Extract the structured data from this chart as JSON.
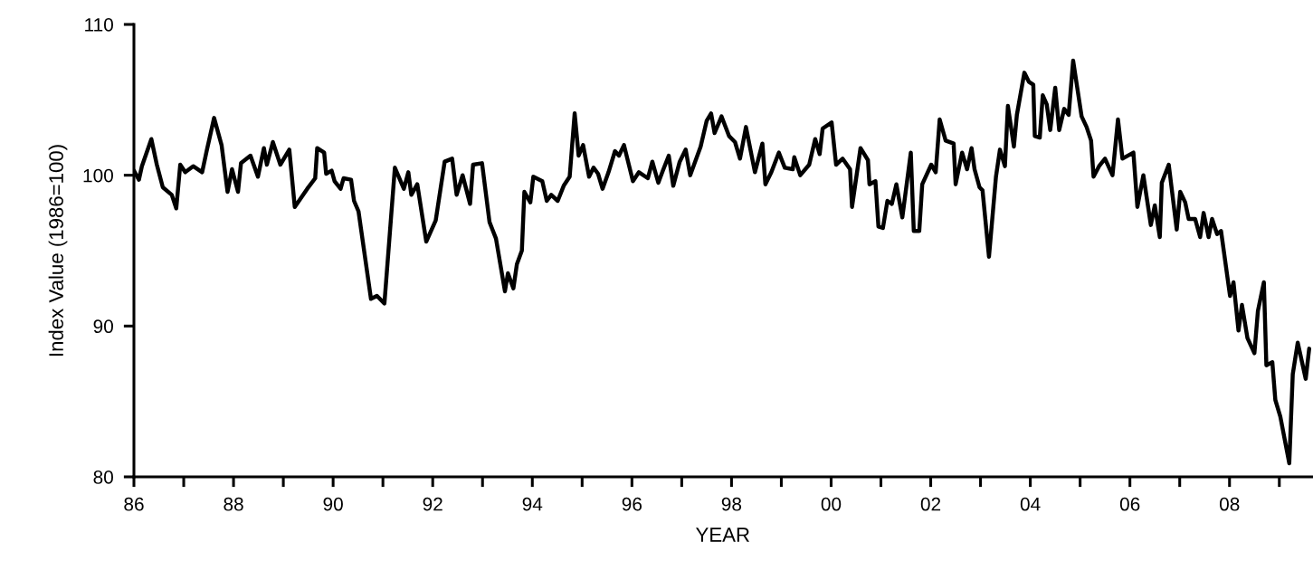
{
  "chart_data": {
    "type": "line",
    "xlabel": "YEAR",
    "ylabel": "Index Value (1986=100)",
    "xlim": [
      1986,
      2009.65
    ],
    "ylim": [
      80,
      110
    ],
    "xticks": [
      {
        "value": 1986,
        "label": "86"
      },
      {
        "value": 1987,
        "label": null
      },
      {
        "value": 1988,
        "label": "88"
      },
      {
        "value": 1989,
        "label": null
      },
      {
        "value": 1990,
        "label": "90"
      },
      {
        "value": 1991,
        "label": null
      },
      {
        "value": 1992,
        "label": "92"
      },
      {
        "value": 1993,
        "label": null
      },
      {
        "value": 1994,
        "label": "94"
      },
      {
        "value": 1995,
        "label": null
      },
      {
        "value": 1996,
        "label": "96"
      },
      {
        "value": 1997,
        "label": null
      },
      {
        "value": 1998,
        "label": "98"
      },
      {
        "value": 1999,
        "label": null
      },
      {
        "value": 2000,
        "label": "00"
      },
      {
        "value": 2001,
        "label": null
      },
      {
        "value": 2002,
        "label": "02"
      },
      {
        "value": 2003,
        "label": null
      },
      {
        "value": 2004,
        "label": "04"
      },
      {
        "value": 2005,
        "label": null
      },
      {
        "value": 2006,
        "label": "06"
      },
      {
        "value": 2007,
        "label": null
      },
      {
        "value": 2008,
        "label": "08"
      },
      {
        "value": 2009,
        "label": null
      }
    ],
    "yticks": [
      80,
      90,
      100,
      110
    ],
    "grid": false,
    "legend": false,
    "marker": "none",
    "line_style": "solid",
    "series": [
      {
        "color": "#000000",
        "x": [
          1986.0,
          1986.1,
          1986.16,
          1986.35,
          1986.46,
          1986.58,
          1986.76,
          1986.85,
          1986.93,
          1987.03,
          1987.19,
          1987.37,
          1987.46,
          1987.61,
          1987.76,
          1987.88,
          1987.97,
          1988.09,
          1988.15,
          1988.34,
          1988.49,
          1988.61,
          1988.67,
          1988.79,
          1988.94,
          1989.12,
          1989.23,
          1989.48,
          1989.64,
          1989.68,
          1989.82,
          1989.86,
          1989.97,
          1990.03,
          1990.15,
          1990.21,
          1990.36,
          1990.42,
          1990.51,
          1990.76,
          1990.88,
          1991.03,
          1991.24,
          1991.42,
          1991.51,
          1991.57,
          1991.69,
          1991.87,
          1992.06,
          1992.24,
          1992.39,
          1992.48,
          1992.6,
          1992.75,
          1992.81,
          1992.99,
          1993.14,
          1993.27,
          1993.45,
          1993.51,
          1993.62,
          1993.69,
          1993.79,
          1993.84,
          1993.96,
          1994.02,
          1994.2,
          1994.29,
          1994.38,
          1994.51,
          1994.63,
          1994.75,
          1994.85,
          1994.93,
          1995.02,
          1995.14,
          1995.23,
          1995.32,
          1995.41,
          1995.53,
          1995.66,
          1995.74,
          1995.84,
          1996.02,
          1996.14,
          1996.32,
          1996.41,
          1996.53,
          1996.62,
          1996.74,
          1996.83,
          1996.96,
          1997.08,
          1997.17,
          1997.38,
          1997.5,
          1997.59,
          1997.66,
          1997.8,
          1997.95,
          1998.07,
          1998.17,
          1998.29,
          1998.47,
          1998.62,
          1998.68,
          1998.8,
          1998.95,
          1999.07,
          1999.23,
          1999.26,
          1999.38,
          1999.56,
          1999.68,
          1999.77,
          1999.83,
          2000.01,
          2000.1,
          2000.23,
          2000.38,
          2000.42,
          2000.59,
          2000.74,
          2000.77,
          2000.89,
          2000.95,
          2001.04,
          2001.13,
          2001.22,
          2001.31,
          2001.43,
          2001.6,
          2001.66,
          2001.77,
          2001.83,
          2002.01,
          2002.1,
          2002.18,
          2002.3,
          2002.46,
          2002.5,
          2002.63,
          2002.73,
          2002.82,
          2002.88,
          2002.98,
          2003.04,
          2003.17,
          2003.31,
          2003.39,
          2003.49,
          2003.55,
          2003.67,
          2003.73,
          2003.88,
          2003.97,
          2004.06,
          2004.09,
          2004.19,
          2004.25,
          2004.33,
          2004.4,
          2004.5,
          2004.58,
          2004.68,
          2004.77,
          2004.86,
          2005.03,
          2005.13,
          2005.22,
          2005.27,
          2005.38,
          2005.5,
          2005.65,
          2005.76,
          2005.85,
          2006.07,
          2006.15,
          2006.27,
          2006.42,
          2006.5,
          2006.6,
          2006.64,
          2006.78,
          2006.94,
          2007.01,
          2007.11,
          2007.18,
          2007.31,
          2007.41,
          2007.48,
          2007.58,
          2007.65,
          2007.75,
          2007.83,
          2008.01,
          2008.08,
          2008.18,
          2008.25,
          2008.36,
          2008.5,
          2008.57,
          2008.69,
          2008.74,
          2008.86,
          2008.92,
          2009.02,
          2009.2,
          2009.27,
          2009.37,
          2009.53,
          2009.6
        ],
        "values": [
          100.3,
          99.7,
          100.6,
          102.4,
          100.7,
          99.2,
          98.7,
          97.8,
          100.7,
          100.2,
          100.6,
          100.2,
          101.6,
          103.8,
          102.0,
          98.9,
          100.4,
          98.9,
          100.8,
          101.3,
          99.9,
          101.8,
          100.7,
          102.2,
          100.7,
          101.7,
          97.9,
          99.1,
          99.8,
          101.8,
          101.5,
          100.1,
          100.3,
          99.6,
          99.1,
          99.8,
          99.7,
          98.3,
          97.6,
          91.8,
          92.0,
          91.5,
          100.5,
          99.1,
          100.2,
          98.7,
          99.4,
          95.6,
          97.0,
          100.9,
          101.1,
          98.7,
          100.0,
          98.1,
          100.7,
          100.8,
          96.9,
          95.8,
          92.3,
          93.5,
          92.5,
          94.1,
          95.0,
          98.9,
          98.2,
          99.9,
          99.6,
          98.3,
          98.7,
          98.3,
          99.3,
          99.9,
          104.1,
          101.3,
          102.0,
          99.9,
          100.5,
          100.1,
          99.1,
          100.2,
          101.6,
          101.3,
          102.0,
          99.6,
          100.2,
          99.8,
          100.9,
          99.5,
          100.3,
          101.3,
          99.3,
          100.9,
          101.7,
          100.0,
          101.9,
          103.6,
          104.1,
          102.8,
          103.9,
          102.6,
          102.2,
          101.1,
          103.2,
          100.2,
          102.1,
          99.4,
          100.2,
          101.5,
          100.5,
          100.4,
          101.2,
          100.0,
          100.7,
          102.4,
          101.4,
          103.1,
          103.5,
          100.7,
          101.1,
          100.4,
          97.9,
          101.8,
          101.0,
          99.4,
          99.6,
          96.6,
          96.5,
          98.3,
          98.1,
          99.4,
          97.2,
          101.5,
          96.3,
          96.3,
          99.4,
          100.7,
          100.2,
          103.7,
          102.3,
          102.1,
          99.4,
          101.5,
          100.4,
          101.8,
          100.4,
          99.2,
          99.0,
          94.6,
          99.9,
          101.7,
          100.6,
          104.6,
          101.9,
          104.0,
          106.8,
          106.2,
          106.0,
          102.6,
          102.5,
          105.3,
          104.7,
          103.0,
          105.8,
          103.0,
          104.4,
          104.0,
          107.6,
          103.9,
          103.2,
          102.3,
          99.9,
          100.6,
          101.1,
          100.0,
          103.7,
          101.1,
          101.5,
          97.9,
          100.0,
          96.7,
          98.0,
          95.9,
          99.5,
          100.7,
          96.4,
          98.9,
          98.2,
          97.1,
          97.1,
          95.9,
          97.5,
          95.9,
          97.1,
          96.1,
          96.3,
          92.0,
          92.9,
          89.7,
          91.4,
          89.2,
          88.2,
          91.0,
          92.9,
          87.4,
          87.6,
          85.1,
          84.0,
          80.9,
          86.8,
          88.9,
          86.5,
          88.5
        ]
      }
    ]
  }
}
